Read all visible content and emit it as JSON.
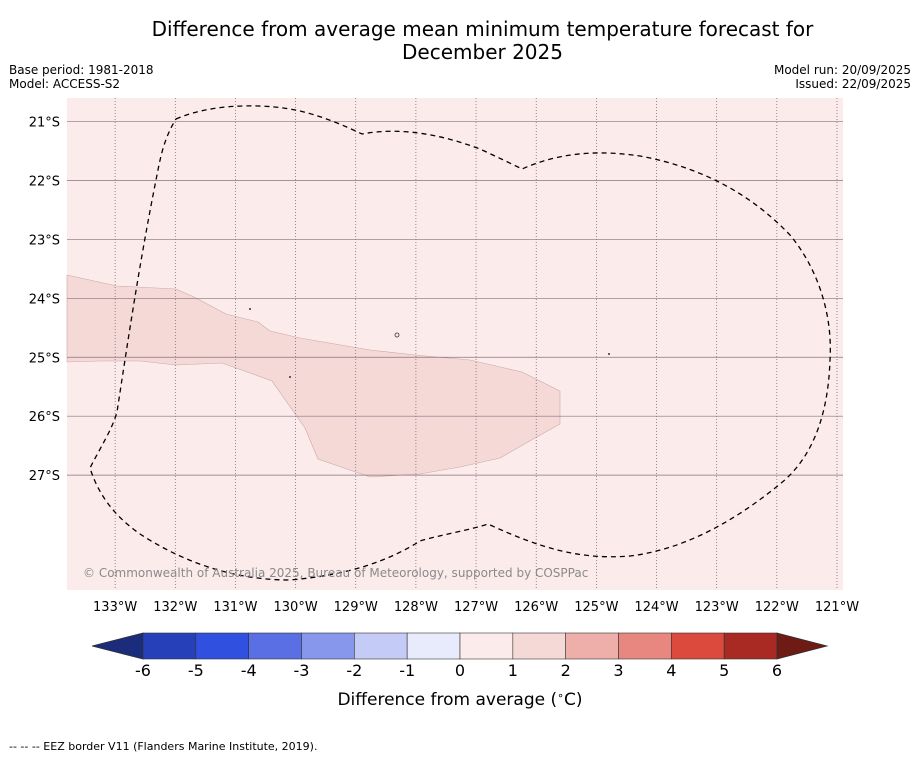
{
  "title": "Difference from average mean minimum temperature forecast for December 2025",
  "title_line1": "Difference from average mean minimum temperature forecast for",
  "title_line2": "December 2025",
  "base_period": "Base period: 1981-2018",
  "model": "Model: ACCESS-S2",
  "model_run": "Model run: 20/09/2025",
  "issued": "Issued: 22/09/2025",
  "copyright": "© Commonwealth of Australia 2025, Bureau of Meteorology, supported by COSPPac",
  "footer": "-- -- -- EEZ border V11 (Flanders Marine Institute, 2019).",
  "map": {
    "lon_range": [
      -133.8,
      -120.9
    ],
    "lat_range": [
      -28.95,
      -20.6
    ],
    "lon_ticks": [
      "133°W",
      "132°W",
      "131°W",
      "130°W",
      "129°W",
      "128°W",
      "127°W",
      "126°W",
      "125°W",
      "124°W",
      "123°W",
      "122°W",
      "121°W"
    ],
    "lat_ticks": [
      "21°S",
      "22°S",
      "23°S",
      "24°S",
      "25°S",
      "26°S",
      "27°S"
    ],
    "background_category": "0 to 1",
    "anomaly_region_category": "1 to 2",
    "eez_border": "dashed"
  },
  "colorbar": {
    "title": "Difference from average (°C)",
    "title_text": "Difference from average (",
    "title_unit": "C)",
    "tick_labels": [
      "-6",
      "-5",
      "-4",
      "-3",
      "-2",
      "-1",
      "0",
      "1",
      "2",
      "3",
      "4",
      "5",
      "6"
    ],
    "colors": [
      "#1b2c7d",
      "#2540b8",
      "#3050df",
      "#5a6fe4",
      "#8797ec",
      "#c3cbf6",
      "#e8ebfb",
      "#fbeceb",
      "#f5d9d7",
      "#eeafaa",
      "#e8877f",
      "#db4a3c",
      "#a92a22",
      "#6e1a15"
    ]
  }
}
